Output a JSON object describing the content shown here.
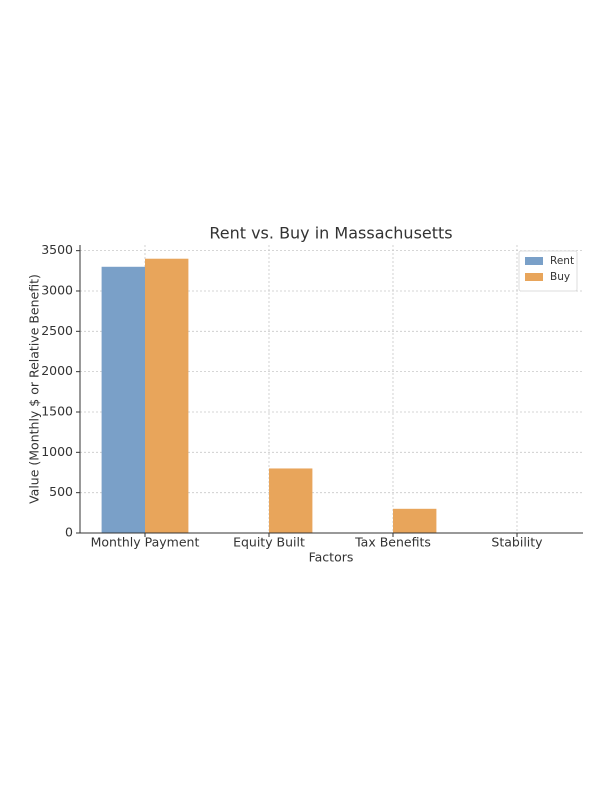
{
  "chart_data": {
    "type": "bar",
    "title": "Rent vs. Buy in Massachusetts",
    "x_label": "Factors",
    "y_label": "Value (Monthly $ or Relative Benefit)",
    "categories": [
      "Monthly Payment",
      "Equity Built",
      "Tax Benefits",
      "Stability"
    ],
    "series": [
      {
        "name": "Rent",
        "color": "#7aa0c8",
        "values": [
          3300,
          0,
          0,
          0
        ]
      },
      {
        "name": "Buy",
        "color": "#e8a55b",
        "values": [
          3400,
          800,
          300,
          0
        ]
      }
    ],
    "ylim": [
      0,
      3570
    ],
    "yticks": [
      0,
      500,
      1000,
      1500,
      2000,
      2500,
      3000,
      3500
    ],
    "grid": true,
    "legend": "upper right"
  }
}
